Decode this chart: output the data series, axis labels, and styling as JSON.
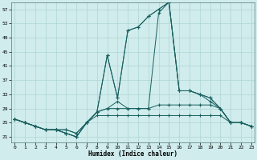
{
  "xlabel": "Humidex (Indice chaleur)",
  "background_color": "#d0ecec",
  "grid_color": "#aed4d4",
  "line_color": "#1a6060",
  "x_ticks": [
    0,
    1,
    2,
    3,
    4,
    5,
    6,
    7,
    8,
    9,
    10,
    11,
    12,
    13,
    14,
    15,
    16,
    17,
    18,
    19,
    20,
    21,
    22,
    23
  ],
  "y_ticks": [
    21,
    25,
    29,
    33,
    37,
    41,
    45,
    49,
    53,
    57
  ],
  "ylim": [
    19.5,
    59
  ],
  "xlim": [
    -0.3,
    23.3
  ],
  "lines": [
    [
      26,
      25,
      24,
      23,
      23,
      22,
      21,
      25,
      28,
      44,
      32,
      51,
      52,
      55,
      57,
      59,
      34,
      34,
      33,
      32,
      29,
      25,
      25,
      24
    ],
    [
      26,
      25,
      24,
      23,
      23,
      22,
      21,
      25,
      28,
      44,
      32,
      51,
      52,
      55,
      57,
      59,
      34,
      34,
      33,
      32,
      29,
      25,
      25,
      24
    ],
    [
      26,
      25,
      24,
      23,
      23,
      22,
      21,
      25,
      28,
      29,
      31,
      29,
      29,
      29,
      56,
      59,
      34,
      34,
      33,
      31,
      29,
      25,
      25,
      24
    ],
    [
      26,
      25,
      24,
      23,
      23,
      23,
      22,
      25,
      28,
      29,
      29,
      29,
      29,
      29,
      30,
      30,
      30,
      30,
      30,
      30,
      29,
      25,
      25,
      24
    ],
    [
      26,
      25,
      24,
      23,
      23,
      23,
      22,
      25,
      27,
      27,
      27,
      27,
      27,
      27,
      27,
      27,
      27,
      27,
      27,
      27,
      27,
      25,
      25,
      24
    ]
  ]
}
